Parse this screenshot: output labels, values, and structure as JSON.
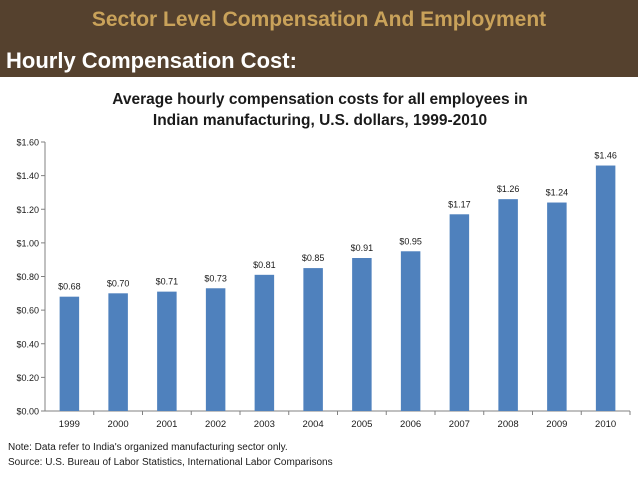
{
  "slide": {
    "title": "Sector Level Compensation And Employment",
    "subtitle": "Hourly Compensation Cost:"
  },
  "colors": {
    "banner": "#55412e",
    "title": "#c9a25a",
    "bar": "#4f81bd"
  },
  "chart_data": {
    "type": "bar",
    "title_line1": "Average hourly compensation costs for all employees in",
    "title_line2": "Indian manufacturing, U.S. dollars, 1999-2010",
    "categories": [
      "1999",
      "2000",
      "2001",
      "2002",
      "2003",
      "2004",
      "2005",
      "2006",
      "2007",
      "2008",
      "2009",
      "2010"
    ],
    "values": [
      0.68,
      0.7,
      0.71,
      0.73,
      0.81,
      0.85,
      0.91,
      0.95,
      1.17,
      1.26,
      1.24,
      1.46
    ],
    "value_labels": [
      "$0.68",
      "$0.70",
      "$0.71",
      "$0.73",
      "$0.81",
      "$0.85",
      "$0.91",
      "$0.95",
      "$1.17",
      "$1.26",
      "$1.24",
      "$1.46"
    ],
    "y_ticks": [
      0,
      0.2,
      0.4,
      0.6,
      0.8,
      1.0,
      1.2,
      1.4,
      1.6
    ],
    "y_tick_labels": [
      "$0.00",
      "$0.20",
      "$0.40",
      "$0.60",
      "$0.80",
      "$1.00",
      "$1.20",
      "$1.40",
      "$1.60"
    ],
    "ylim": [
      0,
      1.6
    ],
    "xlabel": "",
    "ylabel": "",
    "grid": false
  },
  "notes": {
    "note": "Note: Data refer to India's organized manufacturing sector only.",
    "source": "Source: U.S. Bureau of Labor Statistics, International Labor Comparisons"
  }
}
